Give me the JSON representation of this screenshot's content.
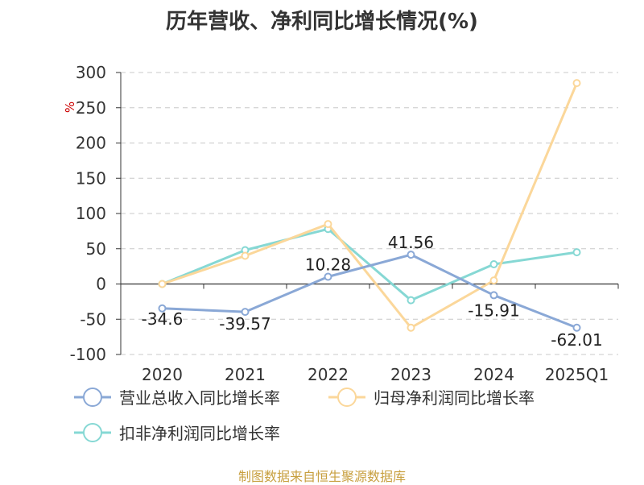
{
  "chart_data": {
    "type": "line",
    "title": "历年营收、净利同比增长情况(%)",
    "ylabel": "%",
    "categories": [
      "2020",
      "2021",
      "2022",
      "2023",
      "2024",
      "2025Q1"
    ],
    "ylim": [
      -100,
      300
    ],
    "yticks": [
      300,
      250,
      200,
      150,
      100,
      50,
      0,
      -50,
      -100
    ],
    "grid": true,
    "legend_position": "bottom",
    "series": [
      {
        "name": "营业总收入同比增长率",
        "color": "#8aa8d6",
        "values": [
          -34.6,
          -39.57,
          10.28,
          41.56,
          -15.91,
          -62.01
        ],
        "labels": [
          "-34.6",
          "-39.57",
          "10.28",
          "41.56",
          "-15.91",
          "-62.01"
        ]
      },
      {
        "name": "归母净利润同比增长率",
        "color": "#fbd79a",
        "values": [
          0,
          40,
          85,
          -62,
          5,
          285
        ],
        "labels": []
      },
      {
        "name": "扣非净利润同比增长率",
        "color": "#86d8d4",
        "values": [
          0,
          48,
          78,
          -23,
          28,
          45
        ],
        "labels": []
      }
    ]
  },
  "source": "制图数据来自恒生聚源数据库"
}
